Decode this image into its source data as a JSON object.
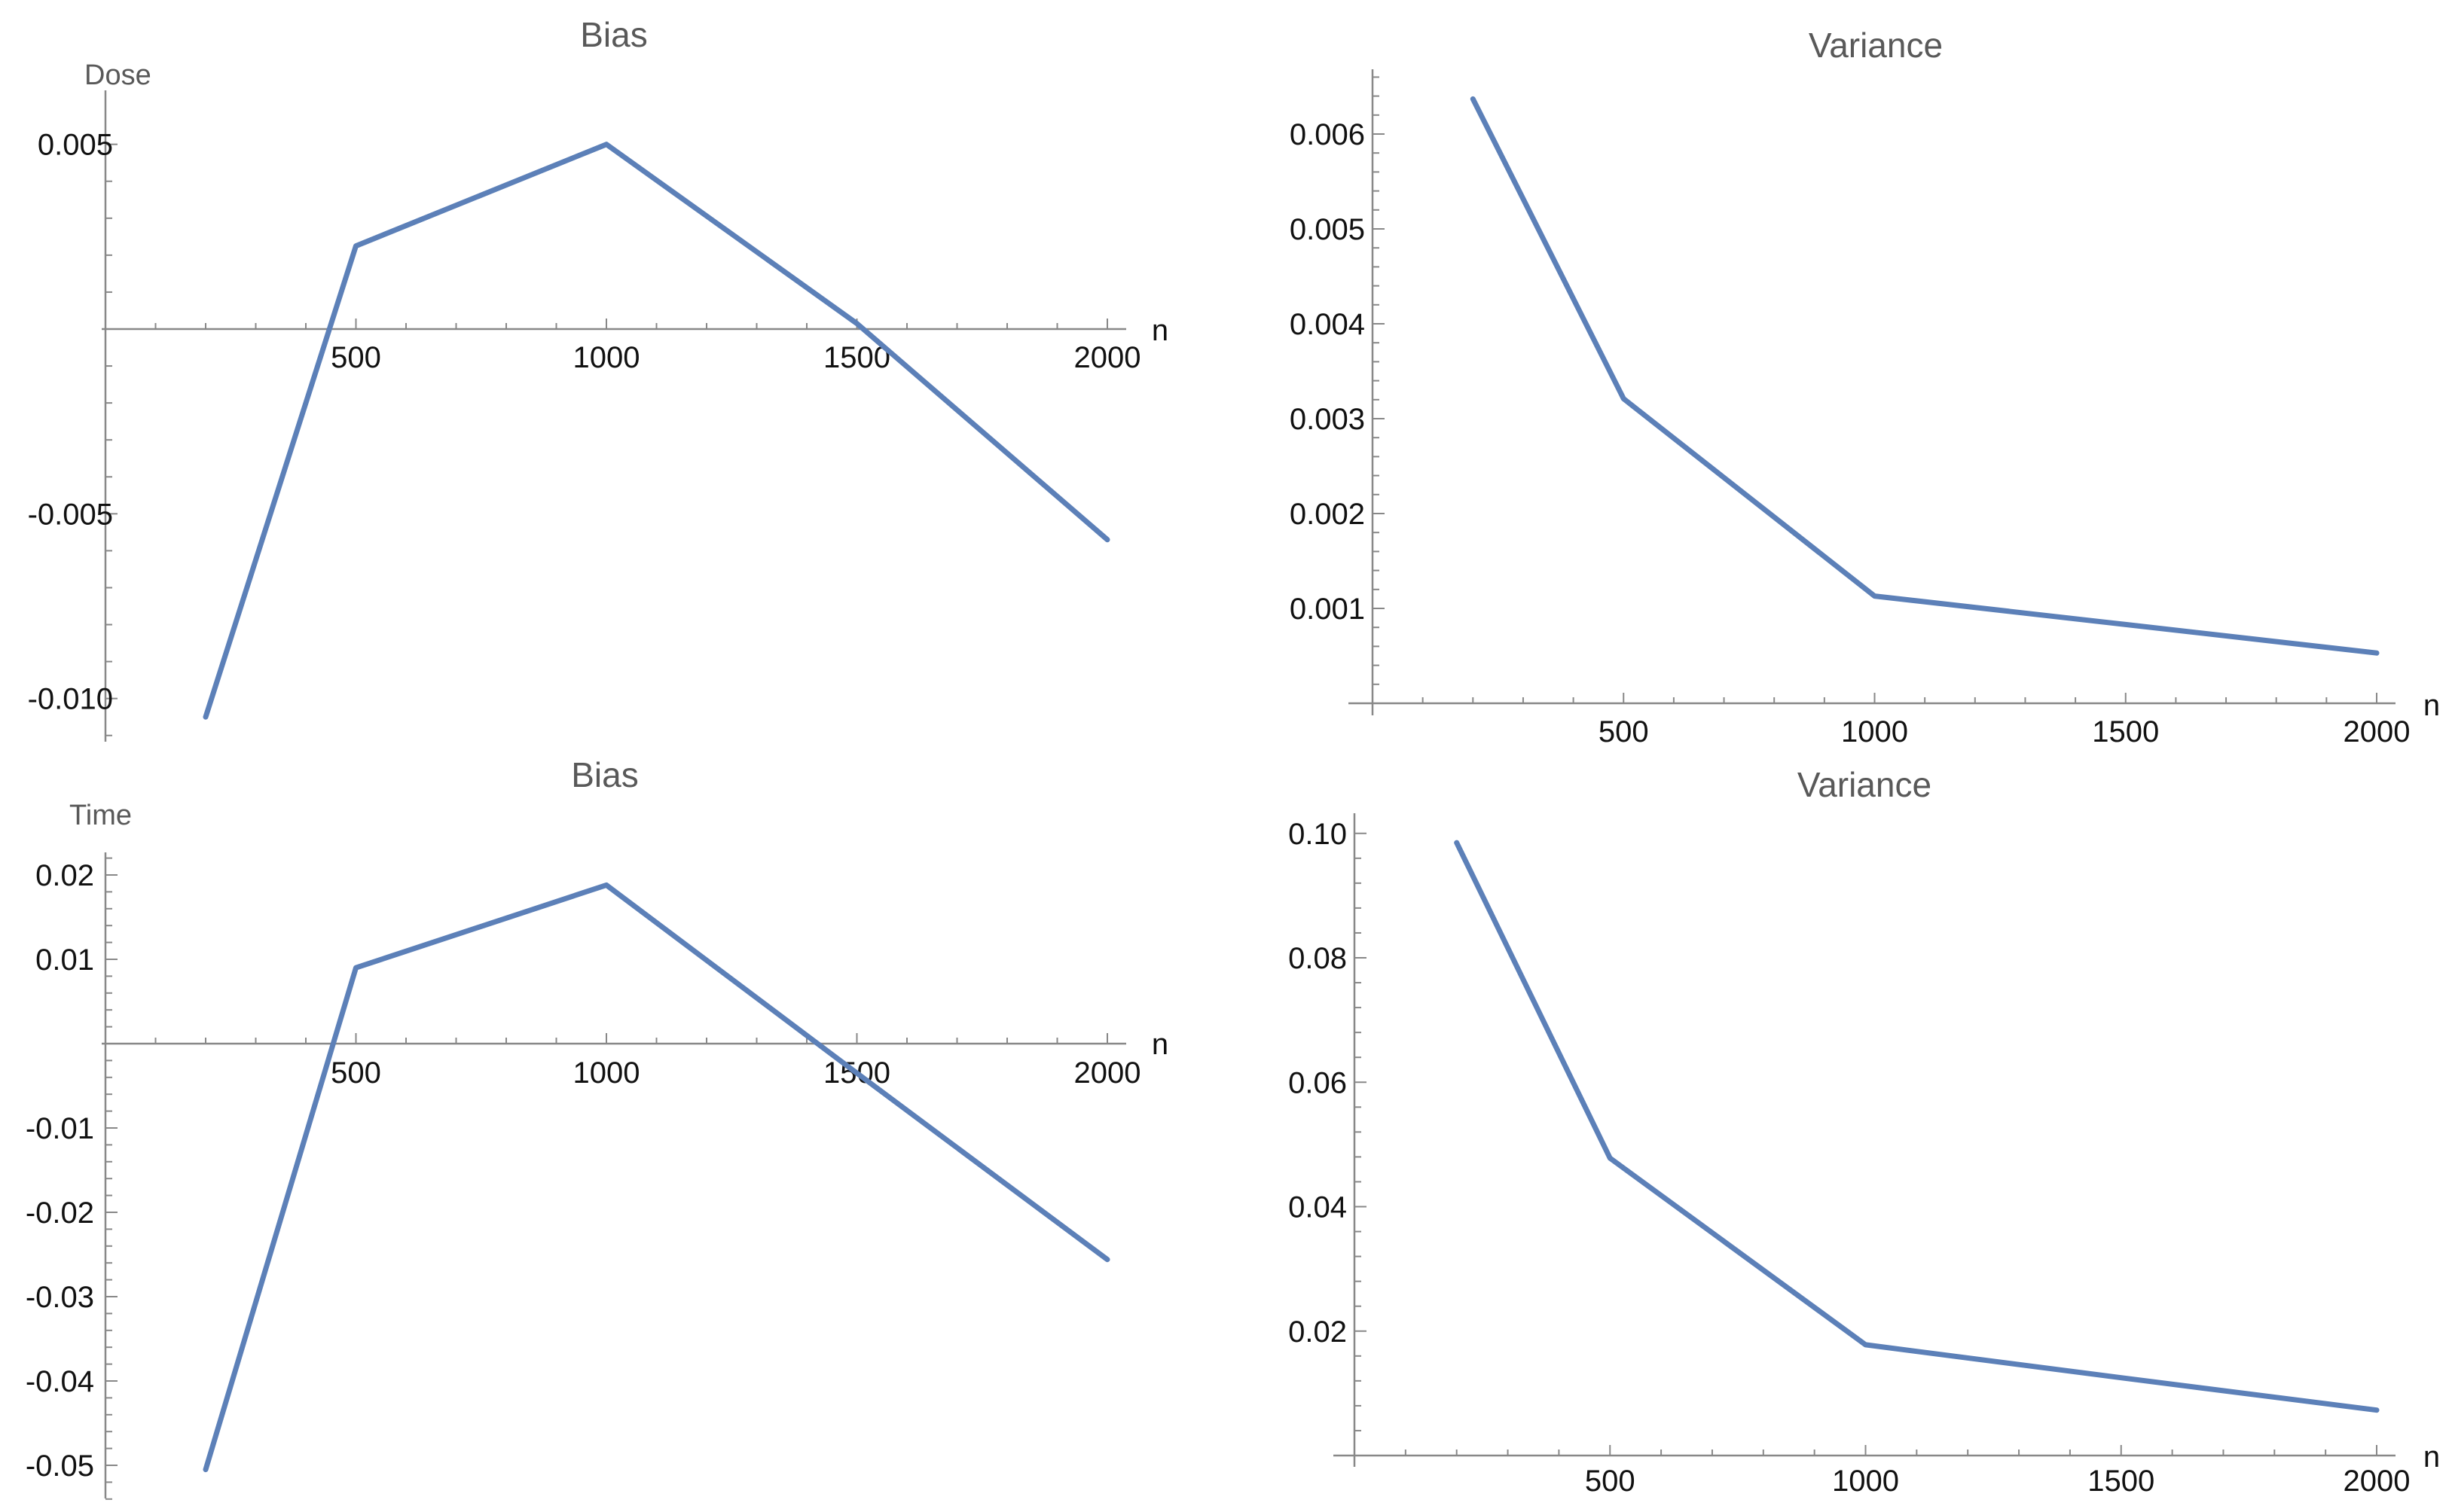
{
  "chart_data": [
    {
      "type": "line",
      "title": "Bias",
      "ylabel": "Dose",
      "xlabel": "n",
      "x": [
        200,
        500,
        1000,
        1500,
        2000
      ],
      "series": [
        {
          "values": [
            -0.0105,
            0.00225,
            0.005,
            0.00015,
            -0.0057
          ]
        }
      ],
      "xlim": [
        0,
        2000
      ],
      "ylim": [
        -0.0112,
        0.0055
      ],
      "xticks": [
        500,
        1000,
        1500,
        2000
      ],
      "yticks": [
        -0.01,
        -0.005,
        0.005
      ],
      "xtick_labels": [
        "500",
        "1000",
        "1500",
        "2000"
      ],
      "ytick_labels": [
        "-0.010",
        "-0.005",
        "0.005"
      ],
      "grid": false,
      "color": "#5c80b8"
    },
    {
      "type": "line",
      "title": "Variance",
      "ylabel": "",
      "xlabel": "n",
      "x": [
        200,
        500,
        1000,
        1500,
        2000
      ],
      "series": [
        {
          "values": [
            0.00637,
            0.00321,
            0.00113,
            0.00083,
            0.00053
          ]
        }
      ],
      "xlim": [
        0,
        2000
      ],
      "ylim": [
        0,
        0.0067
      ],
      "xticks": [
        500,
        1000,
        1500,
        2000
      ],
      "yticks": [
        0.001,
        0.002,
        0.003,
        0.004,
        0.005,
        0.006
      ],
      "xtick_labels": [
        "500",
        "1000",
        "1500",
        "2000"
      ],
      "ytick_labels": [
        "0.001",
        "0.002",
        "0.003",
        "0.004",
        "0.005",
        "0.006"
      ],
      "grid": false,
      "color": "#5c80b8"
    },
    {
      "type": "line",
      "title": "Bias",
      "ylabel": "Time",
      "xlabel": "n",
      "x": [
        200,
        500,
        1000,
        1500,
        2000
      ],
      "series": [
        {
          "values": [
            -0.0505,
            0.009,
            0.0188,
            -0.0035,
            -0.0256
          ]
        }
      ],
      "xlim": [
        0,
        2000
      ],
      "ylim": [
        -0.0545,
        0.0225
      ],
      "xticks": [
        500,
        1000,
        1500,
        2000
      ],
      "yticks": [
        -0.05,
        -0.04,
        -0.03,
        -0.02,
        -0.01,
        0.01,
        0.02
      ],
      "xtick_labels": [
        "500",
        "1000",
        "1500",
        "2000"
      ],
      "ytick_labels": [
        "-0.05",
        "-0.04",
        "-0.03",
        "-0.02",
        "-0.01",
        "0.01",
        "0.02"
      ],
      "grid": false,
      "color": "#5c80b8"
    },
    {
      "type": "line",
      "title": "Variance",
      "ylabel": "",
      "xlabel": "n",
      "x": [
        200,
        500,
        1000,
        1500,
        2000
      ],
      "series": [
        {
          "values": [
            0.0985,
            0.0478,
            0.0178,
            0.0125,
            0.0073
          ]
        }
      ],
      "xlim": [
        0,
        2000
      ],
      "ylim": [
        0,
        0.102
      ],
      "xticks": [
        500,
        1000,
        1500,
        2000
      ],
      "yticks": [
        0.02,
        0.04,
        0.06,
        0.08,
        0.1
      ],
      "xtick_labels": [
        "500",
        "1000",
        "1500",
        "2000"
      ],
      "ytick_labels": [
        "0.02",
        "0.04",
        "0.06",
        "0.08",
        "0.10"
      ],
      "grid": false,
      "color": "#5c80b8"
    }
  ]
}
